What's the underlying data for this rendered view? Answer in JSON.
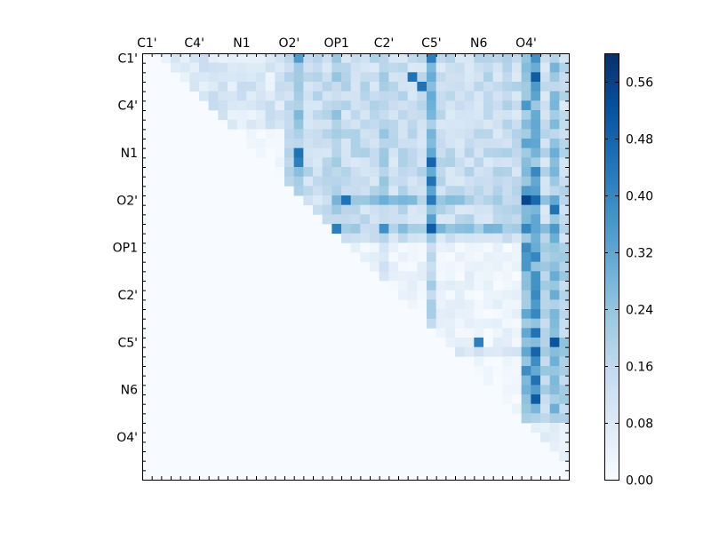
{
  "chart_data": {
    "type": "heatmap",
    "title": "",
    "xlabel": "",
    "ylabel": "",
    "grid": false,
    "x_tick_labels": [
      "C1'",
      "C4'",
      "N1",
      "O2'",
      "OP1",
      "C2'",
      "C5'",
      "N6",
      "O4'"
    ],
    "y_tick_labels": [
      "C1'",
      "C4'",
      "N1",
      "O2'",
      "OP1",
      "C2'",
      "C5'",
      "N6",
      "O4'"
    ],
    "x_tick_positions": [
      0,
      5,
      10,
      15,
      20,
      25,
      30,
      35,
      40
    ],
    "y_tick_positions": [
      0,
      5,
      10,
      15,
      20,
      25,
      30,
      35,
      40
    ],
    "matrix_size": 45,
    "upper_triangular": true,
    "colormap": "Blues",
    "colors": [
      "#f7fbff",
      "#deebf7",
      "#c6dbef",
      "#9ecae1",
      "#6baed6",
      "#4292c6",
      "#2171b5",
      "#08519c",
      "#08306b"
    ],
    "vmin": 0.0,
    "vmax": 0.6,
    "colorbar": {
      "ticks": [
        "0.00",
        "0.08",
        "0.16",
        "0.24",
        "0.32",
        "0.40",
        "0.48",
        "0.56"
      ],
      "tick_values": [
        0.0,
        0.08,
        0.16,
        0.24,
        0.32,
        0.4,
        0.48,
        0.56
      ]
    },
    "notable_cells": [
      {
        "row": 0,
        "col": 16,
        "value": 0.35
      },
      {
        "row": 0,
        "col": 30,
        "value": 0.42
      },
      {
        "row": 2,
        "col": 41,
        "value": 0.5
      },
      {
        "row": 2,
        "col": 28,
        "value": 0.45
      },
      {
        "row": 3,
        "col": 29,
        "value": 0.45
      },
      {
        "row": 10,
        "col": 16,
        "value": 0.45
      },
      {
        "row": 11,
        "col": 16,
        "value": 0.42
      },
      {
        "row": 11,
        "col": 30,
        "value": 0.48
      },
      {
        "row": 13,
        "col": 30,
        "value": 0.45
      },
      {
        "row": 15,
        "col": 21,
        "value": 0.45
      },
      {
        "row": 15,
        "col": 40,
        "value": 0.55
      },
      {
        "row": 15,
        "col": 41,
        "value": 0.47
      },
      {
        "row": 16,
        "col": 43,
        "value": 0.45
      },
      {
        "row": 18,
        "col": 20,
        "value": 0.42
      },
      {
        "row": 18,
        "col": 30,
        "value": 0.5
      },
      {
        "row": 18,
        "col": 25,
        "value": 0.38
      },
      {
        "row": 31,
        "col": 41,
        "value": 0.48
      },
      {
        "row": 30,
        "col": 43,
        "value": 0.52
      },
      {
        "row": 29,
        "col": 41,
        "value": 0.45
      },
      {
        "row": 30,
        "col": 35,
        "value": 0.42
      },
      {
        "row": 34,
        "col": 41,
        "value": 0.45
      },
      {
        "row": 36,
        "col": 41,
        "value": 0.5
      }
    ]
  }
}
